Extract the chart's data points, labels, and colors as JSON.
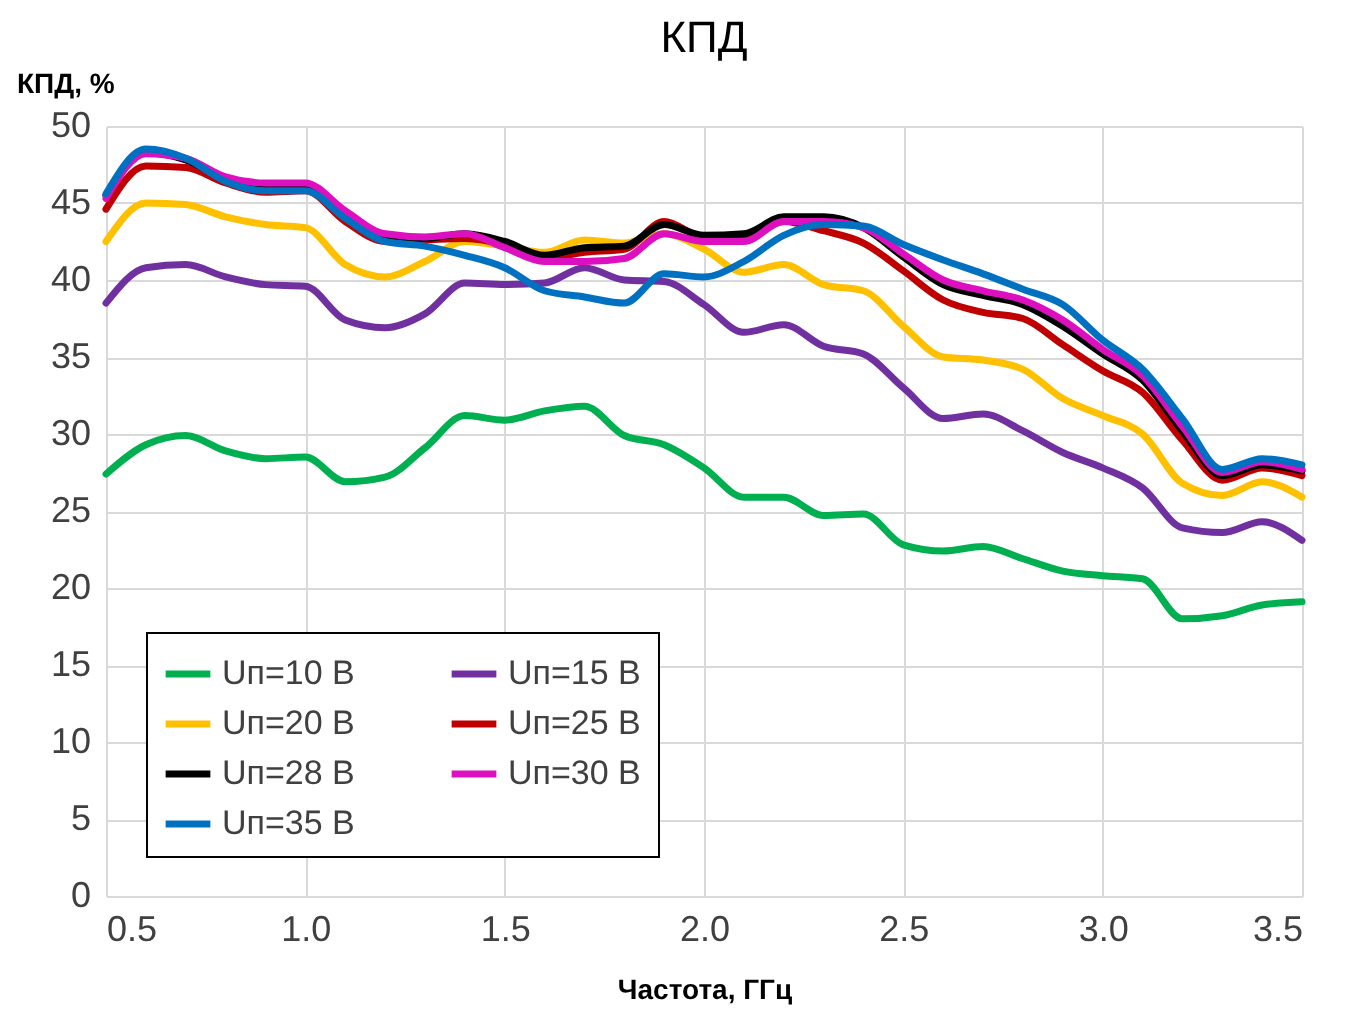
{
  "chart_data": {
    "type": "line",
    "title": "КПД",
    "xlabel": "Частота, ГГц",
    "ylabel": "КПД, %",
    "x": [
      0.5,
      0.6,
      0.7,
      0.8,
      0.9,
      1.0,
      1.1,
      1.2,
      1.3,
      1.4,
      1.5,
      1.6,
      1.7,
      1.8,
      1.9,
      2.0,
      2.1,
      2.2,
      2.3,
      2.4,
      2.5,
      2.6,
      2.7,
      2.8,
      2.9,
      3.0,
      3.1,
      3.2,
      3.3,
      3.4,
      3.5
    ],
    "series": [
      {
        "name": "Uп=10 В",
        "color": "#00b050",
        "values": [
          27.4,
          29.3,
          29.9,
          28.9,
          28.4,
          28.5,
          26.9,
          27.2,
          29.1,
          31.2,
          30.9,
          31.5,
          31.8,
          29.9,
          29.3,
          27.8,
          25.9,
          25.9,
          24.7,
          24.8,
          22.8,
          22.4,
          22.7,
          21.9,
          21.1,
          20.8,
          20.6,
          18.0,
          18.2,
          18.9,
          19.1
        ]
      },
      {
        "name": "Uп=15 В",
        "color": "#7030a0",
        "values": [
          38.5,
          40.8,
          41.0,
          40.2,
          39.7,
          39.6,
          37.4,
          36.9,
          37.8,
          39.8,
          39.7,
          39.8,
          40.8,
          40.0,
          39.9,
          38.4,
          36.6,
          37.1,
          35.7,
          35.2,
          33.0,
          31.0,
          31.3,
          30.2,
          28.8,
          27.8,
          26.5,
          23.9,
          23.6,
          24.3,
          23.1
        ]
      },
      {
        "name": "Uп=20 В",
        "color": "#ffc000",
        "values": [
          42.5,
          45.0,
          44.9,
          44.1,
          43.6,
          43.4,
          41.0,
          40.2,
          41.2,
          42.5,
          42.2,
          41.8,
          42.6,
          42.4,
          43.0,
          42.0,
          40.5,
          41.0,
          39.7,
          39.3,
          37.0,
          35.0,
          34.8,
          34.2,
          32.3,
          31.2,
          30.0,
          26.8,
          26.0,
          26.9,
          25.9
        ]
      },
      {
        "name": "Uп=25 В",
        "color": "#c00000",
        "values": [
          44.6,
          47.4,
          47.3,
          46.3,
          45.7,
          45.8,
          43.8,
          42.5,
          42.6,
          42.7,
          42.3,
          41.4,
          41.8,
          42.0,
          43.8,
          42.8,
          42.8,
          43.8,
          43.2,
          42.4,
          40.6,
          38.7,
          37.9,
          37.5,
          35.8,
          34.1,
          32.7,
          29.6,
          27.0,
          27.8,
          27.3
        ]
      },
      {
        "name": "Uп=28 В",
        "color": "#000000",
        "values": [
          45.5,
          48.3,
          47.8,
          46.6,
          46.1,
          46.2,
          44.3,
          42.9,
          42.7,
          43.0,
          42.5,
          41.6,
          42.1,
          42.2,
          43.6,
          42.9,
          43.0,
          44.1,
          44.1,
          43.4,
          41.5,
          39.7,
          39.0,
          38.4,
          37.0,
          35.2,
          33.5,
          30.2,
          27.3,
          28.0,
          27.6
        ]
      },
      {
        "name": "Uп=30 В",
        "color": "#dd10c0",
        "values": [
          45.3,
          48.2,
          47.9,
          46.7,
          46.3,
          46.3,
          44.5,
          43.0,
          42.8,
          43.0,
          42.1,
          41.2,
          41.2,
          41.4,
          43.0,
          42.5,
          42.5,
          43.8,
          43.8,
          43.4,
          41.7,
          40.0,
          39.3,
          38.7,
          37.4,
          35.5,
          33.8,
          30.5,
          27.5,
          28.2,
          27.7
        ]
      },
      {
        "name": "Uп=35 В",
        "color": "#0070c0",
        "values": [
          45.6,
          48.5,
          47.9,
          46.4,
          45.8,
          45.8,
          44.0,
          42.5,
          42.2,
          41.6,
          40.8,
          39.3,
          38.9,
          38.5,
          40.4,
          40.2,
          41.2,
          42.9,
          43.6,
          43.5,
          42.3,
          41.3,
          40.4,
          39.4,
          38.4,
          36.1,
          34.2,
          31.0,
          27.7,
          28.4,
          28.0
        ]
      }
    ],
    "xlim": [
      0.5,
      3.5
    ],
    "xticks": [
      0.5,
      {
        "value": 1,
        "label": "1.0"
      },
      1.5,
      {
        "value": 2,
        "label": "2.0"
      },
      2.5,
      {
        "value": 3,
        "label": "3.0"
      },
      3.5
    ],
    "ylim": [
      0,
      50
    ],
    "yticks": [
      0,
      5,
      10,
      15,
      20,
      25,
      30,
      35,
      40,
      45,
      50
    ],
    "grid": true,
    "legend": "bottom left",
    "marker": "none",
    "line_style": "solid"
  }
}
